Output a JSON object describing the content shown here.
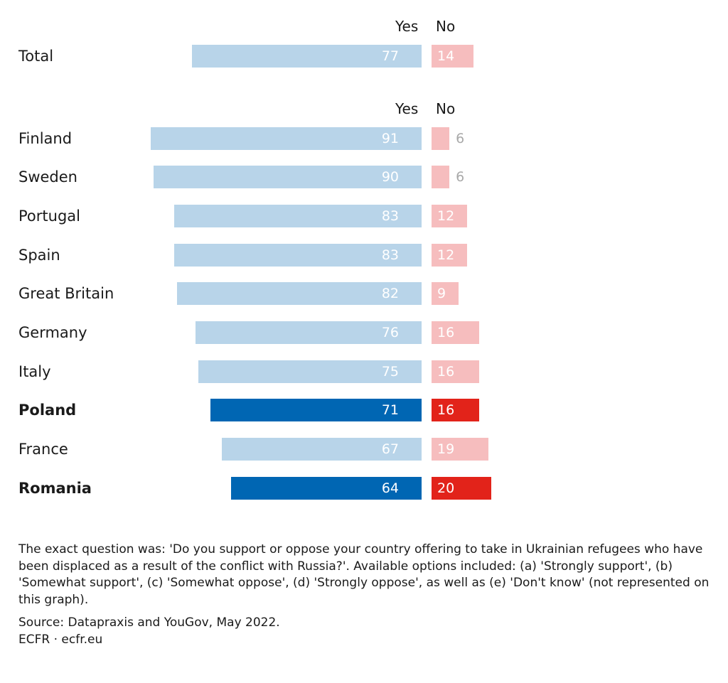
{
  "chart_data": {
    "type": "bar",
    "orientation": "horizontal",
    "unit": "percent",
    "series_labels": {
      "yes": "Yes",
      "no": "No"
    },
    "total": {
      "label": "Total",
      "yes": 77,
      "no": 14
    },
    "categories": [
      "Finland",
      "Sweden",
      "Portugal",
      "Spain",
      "Great Britain",
      "Germany",
      "Italy",
      "Poland",
      "France",
      "Romania"
    ],
    "series": [
      {
        "name": "Yes",
        "values": [
          91,
          90,
          83,
          83,
          82,
          76,
          75,
          71,
          67,
          64
        ]
      },
      {
        "name": "No",
        "values": [
          6,
          6,
          12,
          12,
          9,
          16,
          16,
          16,
          19,
          20
        ]
      }
    ],
    "highlighted": [
      "Poland",
      "Romania"
    ],
    "colors": {
      "yes": "#b8d4e9",
      "yes_highlight": "#0066b3",
      "no": "#f6bdbe",
      "no_highlight": "#e2231a"
    }
  },
  "notes": {
    "question": "The exact question was: 'Do you support or oppose your country offering to take in Ukrainian refugees who have been displaced as a result of the conflict with Russia?'. Available options included: (a) 'Strongly support', (b) 'Somewhat support', (c) 'Somewhat oppose', (d) 'Strongly oppose', as well as (e) 'Don't know' (not represented on this graph).",
    "source": "Source: Datapraxis and YouGov, May 2022.",
    "credit": "ECFR · ecfr.eu"
  }
}
